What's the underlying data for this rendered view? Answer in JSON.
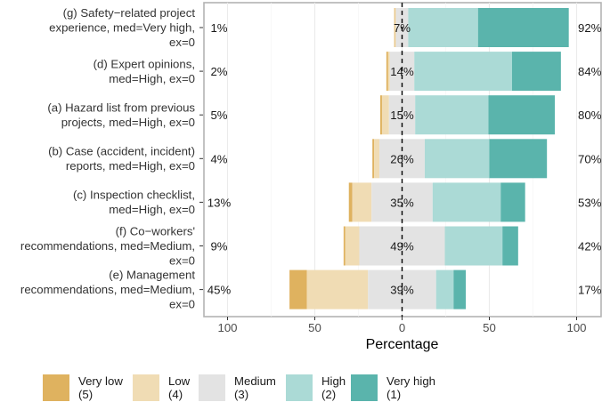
{
  "chart_data": {
    "type": "bar",
    "subtype": "diverging-stacked-likert",
    "title": "",
    "xlabel": "Percentage",
    "ylabel": "",
    "xlim": [
      -115,
      115
    ],
    "x_ticks": [
      -100,
      -50,
      0,
      50,
      100
    ],
    "x_tick_labels": [
      "100",
      "50",
      "0",
      "50",
      "100"
    ],
    "grid": true,
    "legend_position": "bottom",
    "colors": {
      "Very low": "#dfb25f",
      "Low": "#f0dcb4",
      "Medium": "#e3e3e3",
      "High": "#abdad6",
      "Very high": "#5ab4ac",
      "panel_border": "#b3b3b3",
      "grid": "#ebebeb",
      "center_line": "#000000"
    },
    "legend": [
      {
        "key": "Very low",
        "line1": "Very low",
        "line2": "(5)"
      },
      {
        "key": "Low",
        "line1": "Low",
        "line2": "(4)"
      },
      {
        "key": "Medium",
        "line1": "Medium",
        "line2": "(3)"
      },
      {
        "key": "High",
        "line1": "High",
        "line2": "(2)"
      },
      {
        "key": "Very high",
        "line1": "Very high",
        "line2": "(1)"
      }
    ],
    "categories": [
      {
        "label": [
          "(g) Safety−related project",
          "experience, med=Very high,",
          "ex=0"
        ],
        "values": {
          "Very low": 0.5,
          "Low": 0.5,
          "Medium": 7,
          "High": 40,
          "Very high": 52
        },
        "left_pct": "1%",
        "mid_pct": "7%",
        "right_pct": "92%"
      },
      {
        "label": [
          "(d) Expert opinions,",
          "med=High, ex=0"
        ],
        "values": {
          "Very low": 1,
          "Low": 1,
          "Medium": 14,
          "High": 56,
          "Very high": 28
        },
        "left_pct": "2%",
        "mid_pct": "14%",
        "right_pct": "84%"
      },
      {
        "label": [
          "(a) Hazard list from previous",
          "projects, med=High, ex=0"
        ],
        "values": {
          "Very low": 1,
          "Low": 4,
          "Medium": 15,
          "High": 42,
          "Very high": 38
        },
        "left_pct": "5%",
        "mid_pct": "15%",
        "right_pct": "80%"
      },
      {
        "label": [
          "(b) Case (accident, incident)",
          "reports, med=High, ex=0"
        ],
        "values": {
          "Very low": 1,
          "Low": 3,
          "Medium": 26,
          "High": 37,
          "Very high": 33
        },
        "left_pct": "4%",
        "mid_pct": "26%",
        "right_pct": "70%"
      },
      {
        "label": [
          "(c) Inspection checklist,",
          "med=High, ex=0"
        ],
        "values": {
          "Very low": 2,
          "Low": 11,
          "Medium": 35,
          "High": 39,
          "Very high": 14
        },
        "left_pct": "13%",
        "mid_pct": "35%",
        "right_pct": "53%"
      },
      {
        "label": [
          "(f) Co−workers'",
          "recommendations, med=Medium,",
          "ex=0"
        ],
        "values": {
          "Very low": 1,
          "Low": 8,
          "Medium": 49,
          "High": 33,
          "Very high": 9
        },
        "left_pct": "9%",
        "mid_pct": "49%",
        "right_pct": "42%"
      },
      {
        "label": [
          "(e) Management",
          "recommendations, med=Medium,",
          "ex=0"
        ],
        "values": {
          "Very low": 10,
          "Low": 35,
          "Medium": 39,
          "High": 10,
          "Very high": 7
        },
        "left_pct": "45%",
        "mid_pct": "39%",
        "right_pct": "17%"
      }
    ]
  }
}
